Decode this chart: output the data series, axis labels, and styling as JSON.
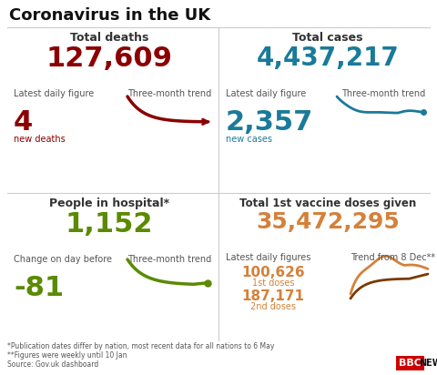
{
  "title": "Coronavirus in the UK",
  "bg_color": "#ffffff",
  "divider_color": "#cccccc",
  "panels": [
    {
      "label": "Total deaths",
      "big_number": "127,609",
      "big_color": "#8b0000",
      "sub_label1": "Latest daily figure",
      "sub_label2": "Three-month trend",
      "daily_value": "4",
      "daily_unit": "new deaths",
      "daily_color": "#8b0000",
      "trend_color": "#8b0000"
    },
    {
      "label": "Total cases",
      "big_number": "4,437,217",
      "big_color": "#1a7a9a",
      "sub_label1": "Latest daily figure",
      "sub_label2": "Three-month trend",
      "daily_value": "2,357",
      "daily_unit": "new cases",
      "daily_color": "#1a7a9a",
      "trend_color": "#1a7a9a"
    },
    {
      "label": "People in hospital*",
      "big_number": "1,152",
      "big_color": "#5a8a00",
      "sub_label1": "Change on day before",
      "sub_label2": "Three-month trend",
      "daily_value": "-81",
      "daily_color": "#5a8a00",
      "trend_color": "#5a8a00"
    },
    {
      "label": "Total 1st vaccine doses given",
      "big_number": "35,472,295",
      "big_color": "#d4813a",
      "sub_label1": "Latest daily figures",
      "sub_label2": "Trend from 8 Dec**",
      "daily_value1": "100,626",
      "daily_unit1": "1st doses",
      "daily_value2": "187,171",
      "daily_unit2": "2nd doses",
      "daily_color": "#d4813a",
      "trend_color1": "#d4813a",
      "trend_color2": "#7a3a00"
    }
  ],
  "footnote1": "*Publication dates differ by nation, most recent data for all nations to 6 May",
  "footnote2": "**Figures were weekly until 10 Jan",
  "footnote3": "Source: Gov.uk dashboard"
}
